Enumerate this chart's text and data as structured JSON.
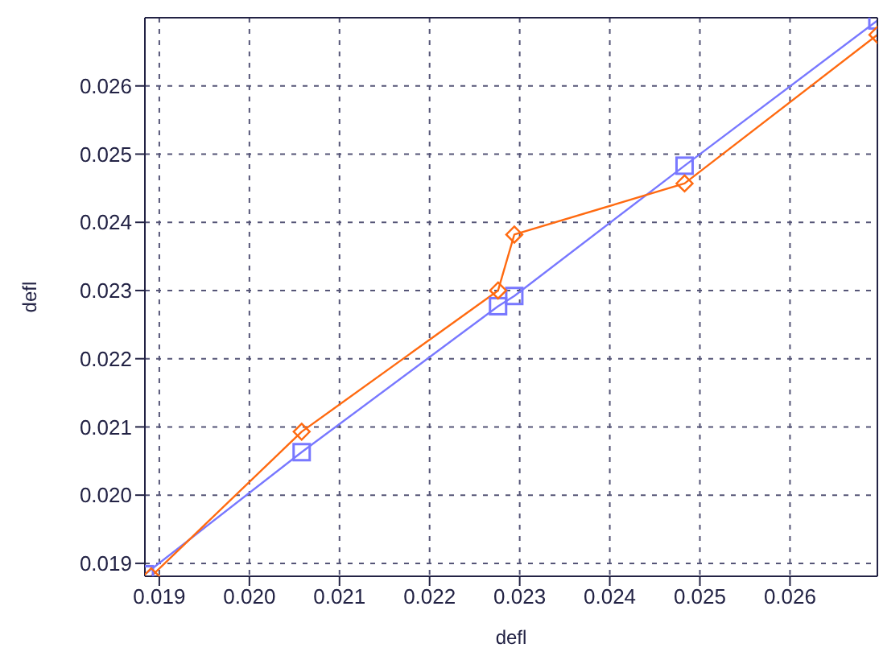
{
  "chart_data": {
    "type": "line",
    "xlabel": "defl",
    "ylabel": "defl",
    "xlim": [
      0.01884,
      0.02697
    ],
    "ylim": [
      0.01881,
      0.027
    ],
    "xticks": [
      {
        "value": 0.019,
        "label": "0.019"
      },
      {
        "value": 0.02,
        "label": "0.020"
      },
      {
        "value": 0.021,
        "label": "0.021"
      },
      {
        "value": 0.022,
        "label": "0.022"
      },
      {
        "value": 0.023,
        "label": "0.023"
      },
      {
        "value": 0.024,
        "label": "0.024"
      },
      {
        "value": 0.025,
        "label": "0.025"
      },
      {
        "value": 0.026,
        "label": "0.026"
      }
    ],
    "yticks": [
      {
        "value": 0.019,
        "label": "0.019"
      },
      {
        "value": 0.02,
        "label": "0.020"
      },
      {
        "value": 0.021,
        "label": "0.021"
      },
      {
        "value": 0.022,
        "label": "0.022"
      },
      {
        "value": 0.023,
        "label": "0.023"
      },
      {
        "value": 0.024,
        "label": "0.024"
      },
      {
        "value": 0.025,
        "label": "0.025"
      },
      {
        "value": 0.026,
        "label": "0.026"
      }
    ],
    "grid": true,
    "legend": false,
    "series": [
      {
        "color": "#7878ff",
        "marker": "square",
        "x": [
          0.01884,
          0.02058,
          0.02276,
          0.02294,
          0.02483,
          0.02697
        ],
        "values": [
          0.01884,
          0.02063,
          0.02277,
          0.02292,
          0.02483,
          0.02696
        ]
      },
      {
        "color": "#ff6a10",
        "marker": "diamond",
        "x": [
          0.01891,
          0.02058,
          0.02276,
          0.02294,
          0.02483,
          0.02697
        ],
        "values": [
          0.01881,
          0.02093,
          0.023,
          0.02382,
          0.02457,
          0.02675
        ]
      }
    ]
  }
}
